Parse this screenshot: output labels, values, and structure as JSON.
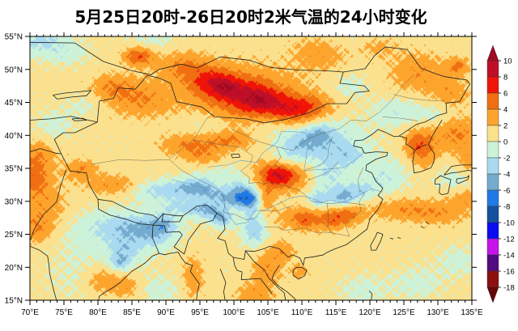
{
  "title": "5月25日20时-26日20时2米气温的24小时变化",
  "chart_data": {
    "type": "heatmap",
    "variant": "filled_contour_weather_map",
    "title": "5月25日20时-26日20时2米气温的24小时变化",
    "region": "China and surrounding areas (East/South/Central Asia)",
    "quantity": "24-hour change of 2 m air temperature (°C)",
    "x_axis": {
      "range_deg_east": [
        70,
        135
      ],
      "major_step_deg": 5,
      "minor_step_deg": 1,
      "ticks": [
        "70°E",
        "75°E",
        "80°E",
        "85°E",
        "90°E",
        "95°E",
        "100°E",
        "105°E",
        "110°E",
        "115°E",
        "120°E",
        "125°E",
        "130°E",
        "135°E"
      ]
    },
    "y_axis": {
      "range_deg_north": [
        15,
        55
      ],
      "major_step_deg": 5,
      "minor_step_deg": 1,
      "ticks": [
        "55°N",
        "50°N",
        "45°N",
        "40°N",
        "35°N",
        "30°N",
        "25°N",
        "20°N",
        "15°N"
      ]
    },
    "colorbar": {
      "orientation": "vertical",
      "arrows_both_ends": true,
      "levels": [
        10,
        8,
        6,
        4,
        2,
        0,
        -2,
        -4,
        -6,
        -8,
        -10,
        -12,
        -14,
        -16,
        -18
      ],
      "labels": [
        "10",
        "8",
        "6",
        "4",
        "2",
        "0",
        "-2",
        "-4",
        "-6",
        "-8",
        "-10",
        "-12",
        "-14",
        "-16",
        "-18"
      ],
      "colors_top_to_bottom": [
        "#9e0b22",
        "#bf0f28",
        "#f01408",
        "#f06f12",
        "#fda42d",
        "#fbe18d",
        "#cdf2da",
        "#a9daf0",
        "#74abce",
        "#2079e5",
        "#16519f",
        "#0a0df2",
        "#c513e9",
        "#520c80",
        "#8c1010",
        "#630606"
      ]
    },
    "field_model": {
      "comment": "value(lon,lat)=base+sum gaussian blobs [lon,lat,amp,sigx,sigy] + noise terms [amp,f1,p1,f2,p2]; °C",
      "base": 0.7,
      "noise": [
        [
          0.55,
          3.0,
          0.7,
          3.4,
          1.3
        ],
        [
          0.45,
          6.1,
          2.0,
          5.7,
          0.5
        ],
        [
          0.3,
          10.7,
          4.2,
          9.3,
          2.8
        ]
      ],
      "blobs": [
        [
          86,
          52,
          5,
          1.6,
          1.0
        ],
        [
          92.5,
          50.5,
          3,
          2.5,
          1.5
        ],
        [
          97,
          48,
          5,
          2.4,
          1.6
        ],
        [
          99,
          47.3,
          2,
          1.2,
          0.9
        ],
        [
          102.5,
          45.8,
          5.5,
          3.2,
          1.9
        ],
        [
          104,
          45.2,
          1.8,
          1.6,
          1.0
        ],
        [
          108,
          43.8,
          4.5,
          2.6,
          1.6
        ],
        [
          111.5,
          44.3,
          3,
          2.4,
          1.4
        ],
        [
          101,
          46.5,
          2.5,
          7.0,
          3.6
        ],
        [
          86,
          45.5,
          3,
          3.5,
          2.0
        ],
        [
          82,
          47.5,
          2.5,
          2.2,
          1.4
        ],
        [
          113,
          52.5,
          2.6,
          3.0,
          1.8
        ],
        [
          120.5,
          53.5,
          2.5,
          2.5,
          1.2
        ],
        [
          127,
          49.5,
          3,
          3.0,
          2.2
        ],
        [
          133,
          50.5,
          3.5,
          1.2,
          0.9
        ],
        [
          132,
          46.5,
          2.5,
          2.0,
          1.5
        ],
        [
          127.5,
          38.2,
          4.2,
          1.7,
          2.2
        ],
        [
          126.7,
          38.8,
          1.6,
          0.8,
          0.9
        ],
        [
          132.8,
          40.2,
          3.4,
          2.4,
          2.0
        ],
        [
          135,
          36,
          2.2,
          1.5,
          1.5
        ],
        [
          93.5,
          38.5,
          3.4,
          3.0,
          1.3
        ],
        [
          99.5,
          39.2,
          3,
          2.2,
          1.0
        ],
        [
          96,
          36.5,
          2.4,
          2.0,
          1.0
        ],
        [
          82,
          32.5,
          3,
          2.6,
          1.1
        ],
        [
          77.5,
          34.8,
          3.2,
          1.7,
          1.1
        ],
        [
          71,
          37,
          3,
          2.0,
          1.6
        ],
        [
          70.5,
          33.5,
          3.8,
          1.8,
          1.7
        ],
        [
          72,
          29,
          2.8,
          2.6,
          2.6
        ],
        [
          71,
          25.5,
          2.6,
          1.7,
          1.5
        ],
        [
          80.5,
          18,
          3.4,
          2.0,
          1.7
        ],
        [
          84.3,
          17,
          2.8,
          1.6,
          1.3
        ],
        [
          94,
          18.5,
          2.8,
          1.1,
          2.4
        ],
        [
          103,
          15.8,
          2.8,
          2.0,
          1.2
        ],
        [
          104.8,
          19.5,
          3,
          1.6,
          1.6
        ],
        [
          106.8,
          22.4,
          2.8,
          1.6,
          1.1
        ],
        [
          109.8,
          19.4,
          2.4,
          1.0,
          0.8
        ],
        [
          111,
          27.4,
          3.4,
          3.4,
          1.4
        ],
        [
          110.3,
          27.2,
          1.8,
          1.0,
          0.8
        ],
        [
          114.8,
          27,
          2.2,
          1.4,
          0.9
        ],
        [
          116.8,
          28.3,
          3.6,
          1.8,
          1.1
        ],
        [
          107,
          33.9,
          6.5,
          2.7,
          1.7
        ],
        [
          106.3,
          34.2,
          2,
          1.3,
          0.9
        ],
        [
          104.6,
          30.2,
          3.5,
          0.8,
          1.3
        ],
        [
          124.5,
          28.8,
          2.8,
          3.2,
          1.2
        ],
        [
          130.5,
          28.2,
          2.6,
          3.0,
          1.3
        ],
        [
          134.5,
          30.5,
          2.6,
          2.0,
          1.1
        ],
        [
          71.5,
          54.5,
          -3.2,
          2.6,
          1.6
        ],
        [
          75.5,
          52.5,
          -1.6,
          2.2,
          1.3
        ],
        [
          73.5,
          41.5,
          -1.4,
          2.0,
          1.6
        ],
        [
          78,
          44.5,
          -1.2,
          2.0,
          1.3
        ],
        [
          88,
          54.5,
          -1.4,
          2.5,
          1.2
        ],
        [
          118,
          54,
          -1.5,
          3.0,
          1.5
        ],
        [
          124,
          43.5,
          -2.2,
          2.6,
          1.6
        ],
        [
          129.5,
          43,
          -1.6,
          2.0,
          1.2
        ],
        [
          114,
          38.5,
          -3.6,
          3.6,
          2.6
        ],
        [
          112.7,
          40.3,
          -2.6,
          1.4,
          1.0
        ],
        [
          116.8,
          36.8,
          -2,
          1.7,
          1.1
        ],
        [
          113.6,
          34.4,
          -1.8,
          1.6,
          1.0
        ],
        [
          109.5,
          38.8,
          -3,
          2.2,
          1.5
        ],
        [
          107.8,
          36.2,
          -2,
          1.7,
          1.3
        ],
        [
          115,
          31.2,
          -3,
          3.0,
          1.6
        ],
        [
          112.4,
          30.1,
          -2.8,
          0.9,
          0.8
        ],
        [
          116.2,
          30.4,
          -3.2,
          1.1,
          0.9
        ],
        [
          118.6,
          31.6,
          -2.2,
          1.3,
          0.9
        ],
        [
          123,
          34.3,
          -1.6,
          2.6,
          2.0
        ],
        [
          132.6,
          33.4,
          -1.5,
          2.2,
          1.5
        ],
        [
          102.2,
          30.4,
          -6.5,
          1.3,
          1.0
        ],
        [
          101,
          32,
          -3.5,
          1.4,
          1.1
        ],
        [
          102.8,
          27.3,
          -3,
          1.3,
          2.0
        ],
        [
          103.2,
          24.8,
          -2.4,
          1.3,
          1.3
        ],
        [
          94.8,
          32.1,
          -4.5,
          1.7,
          1.0
        ],
        [
          91.5,
          31.9,
          -3,
          2.2,
          1.0
        ],
        [
          97.3,
          30.9,
          -3.2,
          1.6,
          0.9
        ],
        [
          99.8,
          30.2,
          -3.4,
          1.4,
          0.9
        ],
        [
          88,
          31.5,
          -2.2,
          2.4,
          1.0
        ],
        [
          92.5,
          29.2,
          -3,
          2.6,
          1.0
        ],
        [
          96.3,
          28.6,
          -4.2,
          1.6,
          0.9
        ],
        [
          98.3,
          27.3,
          -4.6,
          1.1,
          0.9
        ],
        [
          98,
          34.5,
          -1.4,
          3.0,
          1.6
        ],
        [
          82,
          25.5,
          -2,
          6.0,
          2.4
        ],
        [
          84.5,
          26.2,
          -2.6,
          3.2,
          1.3
        ],
        [
          84,
          22.5,
          -3.2,
          1.7,
          1.6
        ],
        [
          83.2,
          20.7,
          -3,
          0.9,
          0.8
        ],
        [
          88.5,
          25.3,
          -3.4,
          2.0,
          1.6
        ],
        [
          89.8,
          26.6,
          -2.4,
          1.2,
          0.9
        ],
        [
          79,
          18.5,
          -1.4,
          4.0,
          3.0
        ],
        [
          89,
          16.5,
          -1.4,
          2.6,
          1.6
        ],
        [
          119,
          16.5,
          -1.4,
          2.4,
          1.6
        ],
        [
          127,
          17.5,
          -1.4,
          2.8,
          1.8
        ],
        [
          133,
          21,
          -1.4,
          2.2,
          1.6
        ],
        [
          121.5,
          33,
          -1.2,
          1.6,
          1.3
        ],
        [
          105.5,
          41.5,
          -1.3,
          2.0,
          1.2
        ],
        [
          117,
          47.5,
          -1.5,
          2.0,
          1.5
        ],
        [
          95,
          41.5,
          -1.2,
          2.5,
          1.2
        ]
      ]
    }
  }
}
